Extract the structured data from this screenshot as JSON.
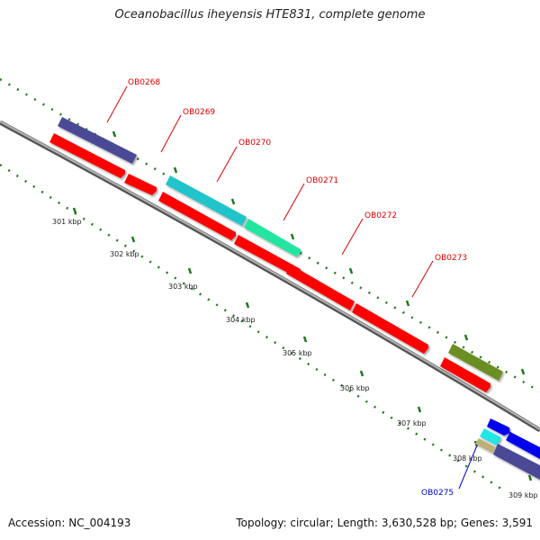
{
  "header": {
    "title": "Oceanobacillus iheyensis HTE831, complete genome"
  },
  "footer": {
    "accession": "Accession: NC_004193",
    "summary": "Topology: circular; Length: 3,630,528 bp; Genes: 3,591"
  },
  "map": {
    "backbone_color": "#8f8f8f",
    "tick_color": "#1d7a1d",
    "position_labels": [
      "301 kbp",
      "302 kbp",
      "303 kbp",
      "304 kbp",
      "305 kbp",
      "306 kbp",
      "307 kbp",
      "308 kbp",
      "309 kbp"
    ],
    "gene_labels": [
      {
        "name": "OB0268",
        "color": "#e00000"
      },
      {
        "name": "OB0269",
        "color": "#e00000"
      },
      {
        "name": "OB0270",
        "color": "#e00000"
      },
      {
        "name": "OB0271",
        "color": "#e00000"
      },
      {
        "name": "OB0272",
        "color": "#e00000"
      },
      {
        "name": "OB0273",
        "color": "#e00000"
      },
      {
        "name": "OB0275",
        "color": "#0000cc"
      }
    ],
    "feature_colors": {
      "cds": "#ff0000",
      "purple": "#4b4896",
      "cyan": "#22c4cc",
      "teal": "#22e6a0",
      "olive": "#6b8e23",
      "blue": "#0000ee",
      "light_cyan": "#22e6e6",
      "tan": "#bdb076"
    }
  }
}
